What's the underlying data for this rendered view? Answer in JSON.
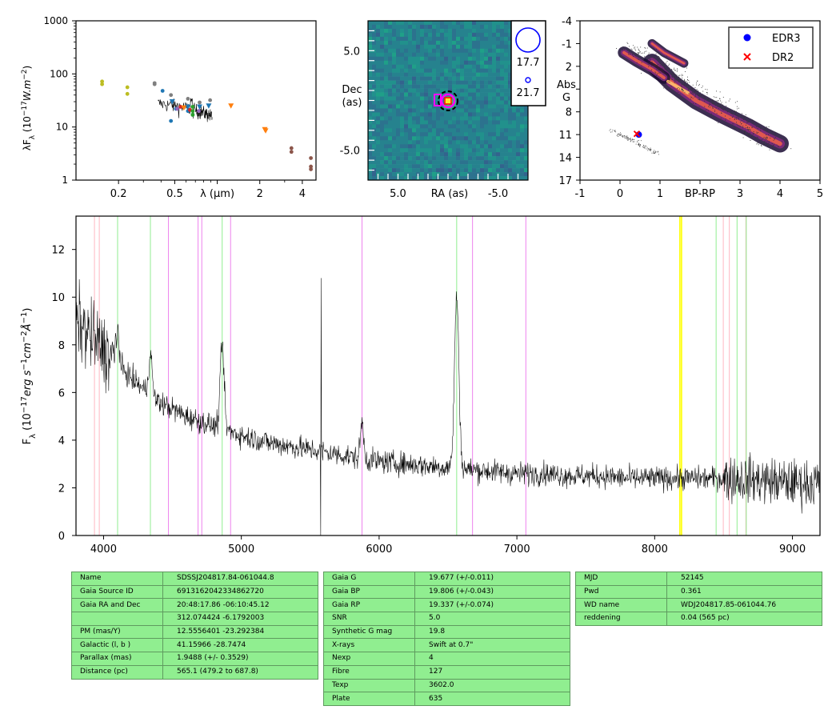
{
  "chart_data": [
    {
      "type": "scatter",
      "panel": "sed",
      "ylabel": "λF_λ (10^-17 W.m^-2)",
      "xlabel": "λ (μm)",
      "xscale": "log",
      "yscale": "log",
      "xlim": [
        0.1,
        5.0
      ],
      "ylim": [
        1,
        1000
      ],
      "xticklabels": [
        "0.2",
        "0.5",
        "λ (μm)",
        "2",
        "4"
      ],
      "yticklabels": [
        "1",
        "10",
        "100",
        "1000"
      ],
      "series": [
        {
          "color": "#bcbd22",
          "marker": "dot",
          "points": [
            [
              0.153,
              64
            ],
            [
              0.153,
              72
            ],
            [
              0.231,
              42
            ],
            [
              0.231,
              56
            ]
          ]
        },
        {
          "color": "#7f7f7f",
          "marker": "dot",
          "points": [
            [
              0.36,
              67
            ],
            [
              0.36,
              64
            ],
            [
              0.47,
              40
            ],
            [
              0.62,
              34
            ],
            [
              0.75,
              29
            ],
            [
              0.89,
              32
            ]
          ]
        },
        {
          "color": "#1f77b4",
          "marker": "dot",
          "points": [
            [
              0.41,
              48
            ],
            [
              0.47,
              13
            ],
            [
              0.51,
              22
            ],
            [
              0.62,
              20
            ],
            [
              0.67,
              17
            ]
          ]
        },
        {
          "color": "#1f77b4",
          "marker": "triangle",
          "points": [
            [
              0.48,
              30
            ],
            [
              0.62,
              24
            ],
            [
              0.75,
              24
            ],
            [
              0.87,
              25
            ]
          ]
        },
        {
          "color": "#d62728",
          "marker": "dot",
          "points": [
            [
              0.55,
              24
            ],
            [
              0.64,
              21
            ]
          ]
        },
        {
          "color": "#2ca02c",
          "marker": "dot",
          "points": [
            [
              0.67,
              24
            ],
            [
              0.67,
              20
            ],
            [
              0.67,
              17
            ]
          ]
        },
        {
          "color": "#9467bd",
          "marker": "dot",
          "points": [
            [
              0.52,
              22
            ],
            [
              0.74,
              20
            ]
          ]
        },
        {
          "color": "#ff7f0e",
          "marker": "triangle",
          "points": [
            [
              0.58,
              23
            ],
            [
              1.25,
              25
            ],
            [
              2.17,
              9
            ],
            [
              2.2,
              8.5
            ]
          ]
        },
        {
          "color": "#8c564b",
          "marker": "dot",
          "points": [
            [
              3.35,
              4
            ],
            [
              3.35,
              3.4
            ],
            [
              4.6,
              2.6
            ],
            [
              4.6,
              1.8
            ],
            [
              4.6,
              1.6
            ]
          ]
        }
      ]
    },
    {
      "type": "heatmap",
      "panel": "image",
      "xlabel": "RA (as)",
      "ylabel": "Dec (as)",
      "xlim": [
        8.0,
        -8.0
      ],
      "ylim": [
        -8.0,
        8.0
      ],
      "xticklabels": [
        "5.0",
        "-5.0"
      ],
      "yticklabels": [
        "5.0",
        "-5.0"
      ],
      "legend": [
        {
          "marker": "circle",
          "color": "#0000ff",
          "label": "17.7"
        },
        {
          "marker": "small-circle",
          "color": "#0000ff",
          "label": "21.7"
        }
      ]
    },
    {
      "type": "scatter",
      "panel": "hrd",
      "xlabel": "BP-RP",
      "ylabel": "Abs G",
      "xlim": [
        -1,
        5
      ],
      "ylim": [
        17,
        -4
      ],
      "xticks": [
        "-1",
        "0",
        "1",
        "BP-RP",
        "3",
        "4",
        "5"
      ],
      "yticks": [
        "-4",
        "-1",
        "2",
        "5",
        "8",
        "11",
        "14",
        "17"
      ],
      "series": [
        {
          "name": "EDR3",
          "color": "#0000ff",
          "marker": "dot",
          "points": [
            [
              0.47,
              11.0
            ]
          ]
        },
        {
          "name": "DR2",
          "color": "#ff0000",
          "marker": "x",
          "points": [
            [
              0.42,
              10.9
            ]
          ]
        }
      ]
    },
    {
      "type": "line",
      "panel": "spectrum",
      "ylabel": "F_λ (10^-17 erg s^-1 cm^-2 Å^-1)",
      "xlim": [
        3800,
        9200
      ],
      "ylim": [
        0,
        13.4
      ],
      "xticks": [
        4000,
        5000,
        6000,
        7000,
        8000,
        9000
      ],
      "yticks": [
        0,
        2,
        4,
        6,
        8,
        10,
        12
      ],
      "continuum": [
        [
          3800,
          9.0
        ],
        [
          3900,
          8.4
        ],
        [
          4000,
          7.8
        ],
        [
          4200,
          6.6
        ],
        [
          4400,
          5.6
        ],
        [
          4600,
          5.0
        ],
        [
          4800,
          4.6
        ],
        [
          5000,
          4.2
        ],
        [
          5200,
          3.9
        ],
        [
          5400,
          3.7
        ],
        [
          5600,
          3.5
        ],
        [
          5800,
          3.3
        ],
        [
          6000,
          3.1
        ],
        [
          6200,
          3.0
        ],
        [
          6400,
          2.9
        ],
        [
          6600,
          2.8
        ],
        [
          6800,
          2.7
        ],
        [
          7000,
          2.6
        ],
        [
          7200,
          2.6
        ],
        [
          7400,
          2.5
        ],
        [
          7600,
          2.5
        ],
        [
          7800,
          2.4
        ],
        [
          8000,
          2.4
        ],
        [
          8200,
          2.4
        ],
        [
          8400,
          2.4
        ],
        [
          8600,
          2.4
        ],
        [
          8800,
          2.3
        ],
        [
          9000,
          2.2
        ],
        [
          9200,
          2.2
        ]
      ],
      "emission": [
        [
          4102,
          1.6,
          10
        ],
        [
          4340,
          1.8,
          12
        ],
        [
          4861,
          3.5,
          14
        ],
        [
          5876,
          1.5,
          12
        ],
        [
          6563,
          7.2,
          16
        ]
      ],
      "lines": [
        {
          "wl": 3934,
          "color": "#ffb6c1"
        },
        {
          "wl": 3969,
          "color": "#ffb6c1"
        },
        {
          "wl": 4102,
          "color": "#90ee90"
        },
        {
          "wl": 4340,
          "color": "#90ee90"
        },
        {
          "wl": 4471,
          "color": "#ee82ee"
        },
        {
          "wl": 4686,
          "color": "#ee82ee"
        },
        {
          "wl": 4713,
          "color": "#ee82ee"
        },
        {
          "wl": 4861,
          "color": "#90ee90"
        },
        {
          "wl": 4922,
          "color": "#ee82ee"
        },
        {
          "wl": 5876,
          "color": "#ee82ee"
        },
        {
          "wl": 6563,
          "color": "#90ee90"
        },
        {
          "wl": 6678,
          "color": "#ee82ee"
        },
        {
          "wl": 7065,
          "color": "#ee82ee"
        },
        {
          "wl": 8183,
          "color": "#ffff00"
        },
        {
          "wl": 8195,
          "color": "#ffff00"
        },
        {
          "wl": 8446,
          "color": "#90ee90"
        },
        {
          "wl": 8498,
          "color": "#ffb6c1"
        },
        {
          "wl": 8542,
          "color": "#ffb6c1"
        },
        {
          "wl": 8598,
          "color": "#90ee90"
        },
        {
          "wl": 8662,
          "color": "#ffb6c1"
        },
        {
          "wl": 8665,
          "color": "#90ee90"
        }
      ]
    }
  ],
  "tables": {
    "identity": [
      [
        "Name",
        "SDSSJ204817.84-061044.8"
      ],
      [
        "Gaia Source ID",
        "6913162042334862720"
      ],
      [
        "Gaia RA and Dec",
        "20:48:17.86    -06:10:45.12"
      ],
      [
        "",
        "312.074424    -6.1792003"
      ],
      [
        "PM (mas/Y)",
        "12.5556401    -23.292384"
      ],
      [
        "Galactic (l, b )",
        "41.15966    -28.7474"
      ],
      [
        "Parallax (mas)",
        "1.9488 (+/- 0.3529)"
      ],
      [
        "Distance (pc)",
        "565.1 (479.2 to 687.8)"
      ]
    ],
    "photometry": [
      [
        "Gaia G",
        "19.677 (+/-0.011)"
      ],
      [
        "Gaia BP",
        "19.806 (+/-0.043)"
      ],
      [
        "Gaia RP",
        "19.337 (+/-0.074)"
      ],
      [
        "SNR",
        "5.0"
      ],
      [
        "Synthetic G mag",
        "19.8"
      ],
      [
        "X-rays",
        "Swift at 0.7\""
      ],
      [
        "Nexp",
        "4"
      ],
      [
        "Fibre",
        "127"
      ],
      [
        "Texp",
        "3602.0"
      ],
      [
        "Plate",
        "635"
      ]
    ],
    "observation": [
      [
        "MJD",
        "52145"
      ],
      [
        "Pwd",
        "0.361"
      ],
      [
        "WD name",
        "WDJ204817.85-061044.76"
      ],
      [
        "reddening",
        "0.04 (565 pc)"
      ]
    ]
  },
  "colors": {
    "table_bg": "#90ee90",
    "spectrum": "#000000"
  }
}
